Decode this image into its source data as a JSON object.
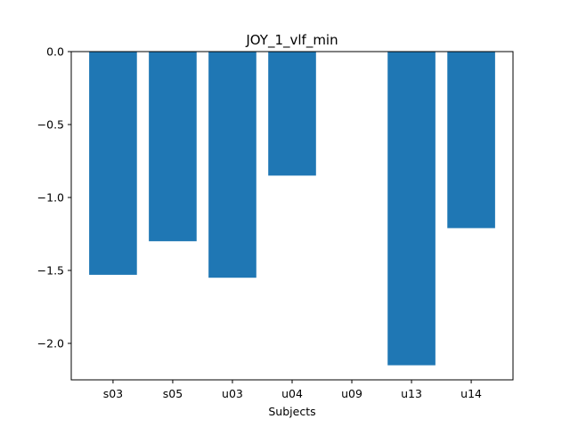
{
  "chart_data": {
    "type": "bar",
    "title": "JOY_1_vlf_min",
    "xlabel": "Subjects",
    "ylabel": "",
    "categories": [
      "s03",
      "s05",
      "u03",
      "u04",
      "u09",
      "u13",
      "u14"
    ],
    "values": [
      -1.53,
      -1.3,
      -1.55,
      -0.85,
      0.0,
      -2.15,
      -1.21
    ],
    "ylim": [
      -2.25,
      0.0
    ],
    "yticks": [
      0.0,
      -0.5,
      -1.0,
      -1.5,
      -2.0
    ],
    "ytick_labels": [
      "0.0",
      "−0.5",
      "−1.0",
      "−1.5",
      "−2.0"
    ],
    "bar_color": "#1f77b4",
    "grid": false,
    "legend": "none"
  }
}
